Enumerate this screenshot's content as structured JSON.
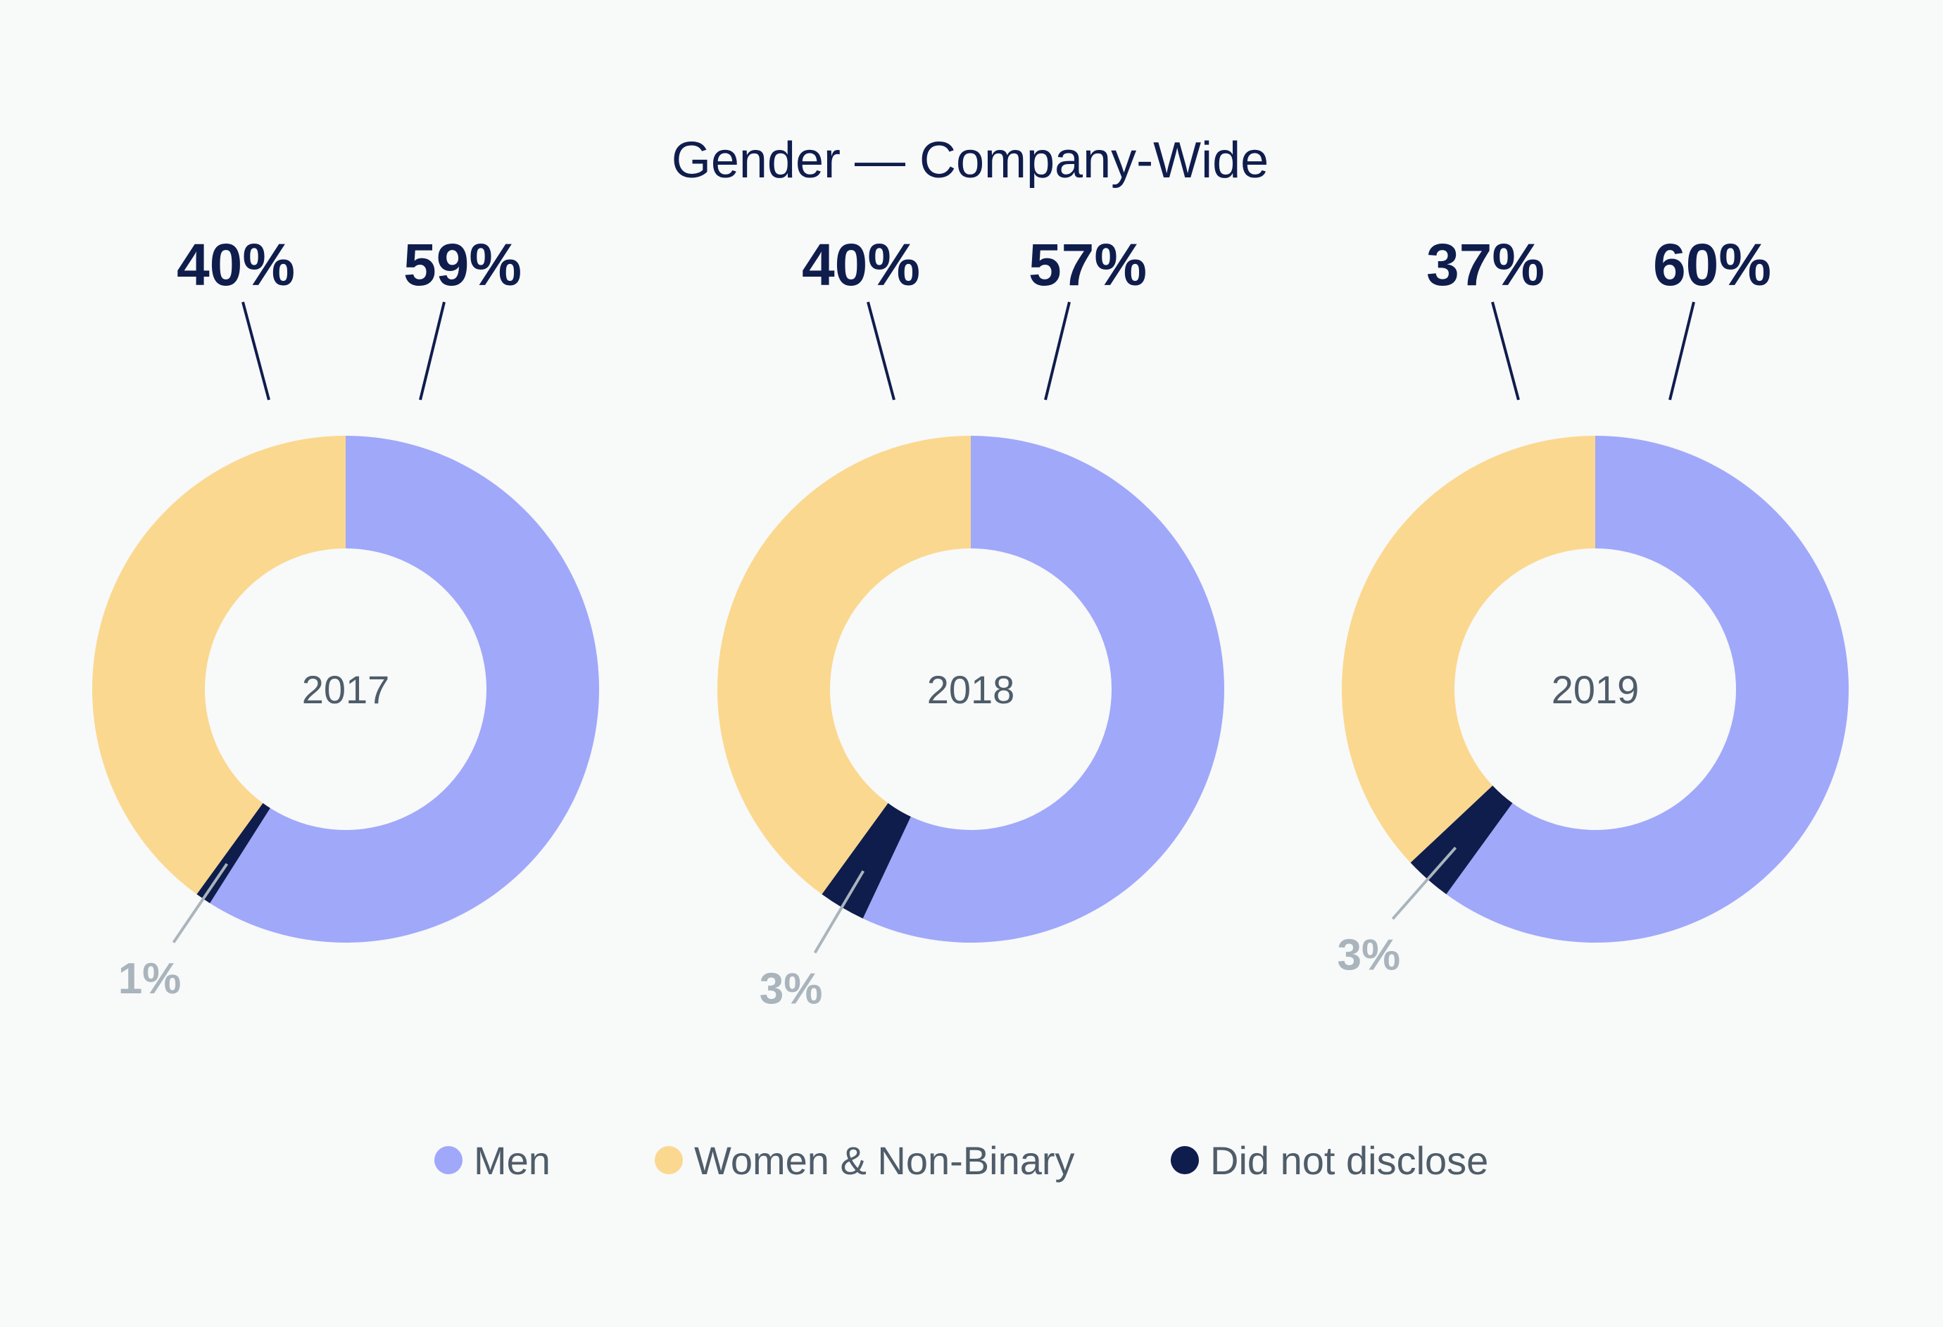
{
  "chart_data": {
    "type": "pie",
    "variant": "donut",
    "title": "Gender — Company-Wide",
    "categories": [
      "Men",
      "Women & Non-Binary",
      "Did not disclose"
    ],
    "colors": {
      "Men": "#a0a8fa",
      "Women & Non-Binary": "#fbd88f",
      "Did not disclose": "#0f1d4d",
      "label_dark": "#0f1d4d",
      "label_light": "#a9b4bc",
      "center_text": "#4f5d6a",
      "background": "#f8f9f9"
    },
    "charts": [
      {
        "year": "2017",
        "values": [
          59,
          40,
          1
        ],
        "labels": [
          "59%",
          "40%",
          "1%"
        ]
      },
      {
        "year": "2018",
        "values": [
          57,
          40,
          3
        ],
        "labels": [
          "57%",
          "40%",
          "3%"
        ]
      },
      {
        "year": "2019",
        "values": [
          60,
          37,
          3
        ],
        "labels": [
          "60%",
          "37%",
          "3%"
        ]
      }
    ],
    "legend": [
      "Men",
      "Women & Non-Binary",
      "Did not disclose"
    ],
    "legend_position": "bottom"
  }
}
